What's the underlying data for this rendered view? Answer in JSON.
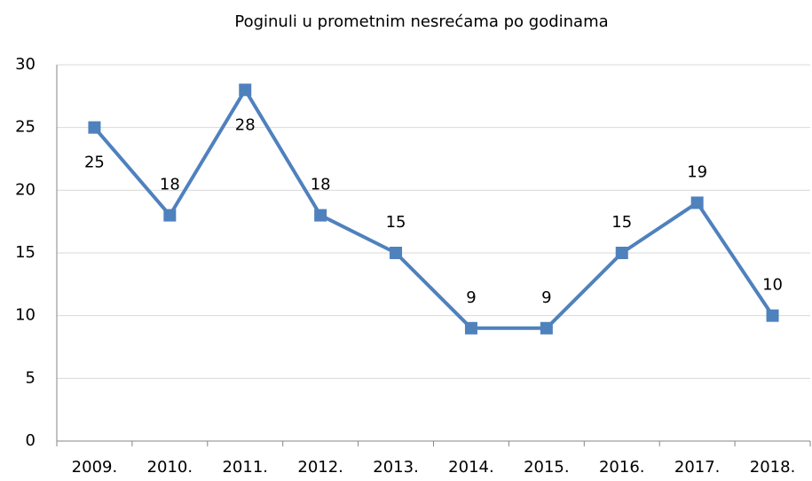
{
  "chart_data": {
    "type": "line",
    "title": "Poginuli u prometnim nesrećama po godinama",
    "categories": [
      "2009.",
      "2010.",
      "2011.",
      "2012.",
      "2013.",
      "2014.",
      "2015.",
      "2016.",
      "2017.",
      "2018."
    ],
    "series": [
      {
        "color": "#4f81bd",
        "values": [
          25,
          18,
          28,
          18,
          15,
          9,
          9,
          15,
          19,
          10
        ]
      }
    ],
    "ylim": [
      0,
      30
    ],
    "yticks": [
      0,
      5,
      10,
      15,
      20,
      25,
      30
    ],
    "grid": true
  }
}
